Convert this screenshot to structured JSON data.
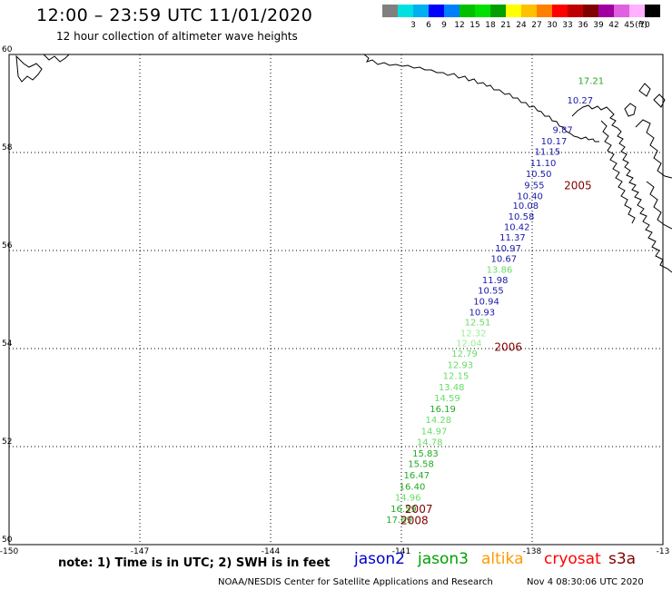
{
  "header": {
    "title": "12:00 – 23:59 UTC 11/01/2020",
    "subtitle": "12 hour collection of altimeter wave heights"
  },
  "legend": {
    "unit": "(ft)",
    "items": [
      {
        "color": "#808080",
        "label": ""
      },
      {
        "color": "#00e0e0",
        "label": "3"
      },
      {
        "color": "#00b0f0",
        "label": "6"
      },
      {
        "color": "#0000ff",
        "label": "9"
      },
      {
        "color": "#0080ff",
        "label": "12"
      },
      {
        "color": "#00c000",
        "label": "15"
      },
      {
        "color": "#00e000",
        "label": "18"
      },
      {
        "color": "#00a000",
        "label": "21"
      },
      {
        "color": "#ffff00",
        "label": "24"
      },
      {
        "color": "#ffc000",
        "label": "27"
      },
      {
        "color": "#ff8000",
        "label": "30"
      },
      {
        "color": "#ff0000",
        "label": "33"
      },
      {
        "color": "#c00000",
        "label": "36"
      },
      {
        "color": "#800000",
        "label": "39"
      },
      {
        "color": "#a000a0",
        "label": "42"
      },
      {
        "color": "#e060e0",
        "label": "45"
      },
      {
        "color": "#ffb0ff",
        "label": "70"
      },
      {
        "color": "#000000",
        "label": ""
      }
    ]
  },
  "map": {
    "lon_range": [
      -150,
      -135
    ],
    "lat_range": [
      50,
      60
    ],
    "lon_ticks": [
      {
        "value": -150,
        "label": "-150"
      },
      {
        "value": -147,
        "label": "-147"
      },
      {
        "value": -144,
        "label": "-144"
      },
      {
        "value": -141,
        "label": "-141"
      },
      {
        "value": -138,
        "label": "-138"
      },
      {
        "value": -135,
        "label": "-13"
      }
    ],
    "lat_ticks": [
      {
        "value": 50,
        "label": "50"
      },
      {
        "value": 52,
        "label": "52"
      },
      {
        "value": 54,
        "label": "54"
      },
      {
        "value": 56,
        "label": "56"
      },
      {
        "value": 58,
        "label": "58"
      },
      {
        "value": 60,
        "label": "60"
      }
    ],
    "observations": [
      {
        "lon": -136.65,
        "lat": 59.4,
        "value": "17.21",
        "color": "#22aa22"
      },
      {
        "lon": -136.9,
        "lat": 59.0,
        "value": "10.27",
        "color": "#1a1aaa"
      },
      {
        "lon": -137.3,
        "lat": 58.4,
        "value": "9.87",
        "color": "#1a1aaa"
      },
      {
        "lon": -137.5,
        "lat": 58.17,
        "value": "10.17",
        "color": "#1a1aaa"
      },
      {
        "lon": -137.65,
        "lat": 57.95,
        "value": "11.15",
        "color": "#1a1aaa"
      },
      {
        "lon": -137.75,
        "lat": 57.72,
        "value": "11.10",
        "color": "#1a1aaa"
      },
      {
        "lon": -137.85,
        "lat": 57.5,
        "value": "10.50",
        "color": "#1a1aaa"
      },
      {
        "lon": -137.95,
        "lat": 57.27,
        "value": "9.55",
        "color": "#1a1aaa"
      },
      {
        "lon": -138.05,
        "lat": 57.05,
        "value": "10.40",
        "color": "#1a1aaa"
      },
      {
        "lon": -138.15,
        "lat": 56.85,
        "value": "10.08",
        "color": "#1a1aaa"
      },
      {
        "lon": -138.25,
        "lat": 56.63,
        "value": "10.58",
        "color": "#1a1aaa"
      },
      {
        "lon": -138.35,
        "lat": 56.42,
        "value": "10.42",
        "color": "#1a1aaa"
      },
      {
        "lon": -138.45,
        "lat": 56.2,
        "value": "11.37",
        "color": "#1a1aaa"
      },
      {
        "lon": -138.55,
        "lat": 55.98,
        "value": "10.97",
        "color": "#1a1aaa"
      },
      {
        "lon": -138.65,
        "lat": 55.77,
        "value": "10.67",
        "color": "#1a1aaa"
      },
      {
        "lon": -138.75,
        "lat": 55.55,
        "value": "13.86",
        "color": "#66dd66"
      },
      {
        "lon": -138.85,
        "lat": 55.33,
        "value": "11.98",
        "color": "#1a1aaa"
      },
      {
        "lon": -138.95,
        "lat": 55.12,
        "value": "10.55",
        "color": "#1a1aaa"
      },
      {
        "lon": -139.05,
        "lat": 54.9,
        "value": "10.94",
        "color": "#1a1aaa"
      },
      {
        "lon": -139.15,
        "lat": 54.68,
        "value": "10.93",
        "color": "#1a1aaa"
      },
      {
        "lon": -139.25,
        "lat": 54.47,
        "value": "12.51",
        "color": "#66dd66"
      },
      {
        "lon": -139.35,
        "lat": 54.25,
        "value": "12.32",
        "color": "#99ee99"
      },
      {
        "lon": -139.45,
        "lat": 54.05,
        "value": "12.04",
        "color": "#99ee99"
      },
      {
        "lon": -139.55,
        "lat": 53.83,
        "value": "12.79",
        "color": "#66dd66"
      },
      {
        "lon": -139.65,
        "lat": 53.6,
        "value": "12.93",
        "color": "#66dd66"
      },
      {
        "lon": -139.75,
        "lat": 53.38,
        "value": "12.15",
        "color": "#66dd66"
      },
      {
        "lon": -139.85,
        "lat": 53.15,
        "value": "13.48",
        "color": "#66dd66"
      },
      {
        "lon": -139.95,
        "lat": 52.93,
        "value": "14.59",
        "color": "#66dd66"
      },
      {
        "lon": -140.05,
        "lat": 52.7,
        "value": "16.19",
        "color": "#22aa22"
      },
      {
        "lon": -140.15,
        "lat": 52.48,
        "value": "14.28",
        "color": "#66dd66"
      },
      {
        "lon": -140.25,
        "lat": 52.25,
        "value": "14.97",
        "color": "#66dd66"
      },
      {
        "lon": -140.35,
        "lat": 52.03,
        "value": "14.78",
        "color": "#66dd66"
      },
      {
        "lon": -140.45,
        "lat": 51.8,
        "value": "15.83",
        "color": "#22aa22"
      },
      {
        "lon": -140.55,
        "lat": 51.58,
        "value": "15.58",
        "color": "#22aa22"
      },
      {
        "lon": -140.65,
        "lat": 51.35,
        "value": "16.47",
        "color": "#22aa22"
      },
      {
        "lon": -140.75,
        "lat": 51.12,
        "value": "16.40",
        "color": "#22aa22"
      },
      {
        "lon": -140.85,
        "lat": 50.9,
        "value": "14.96",
        "color": "#66dd66"
      },
      {
        "lon": -140.95,
        "lat": 50.67,
        "value": "16.59",
        "color": "#22aa22"
      },
      {
        "lon": -141.05,
        "lat": 50.44,
        "value": "17.69",
        "color": "#22aa22"
      }
    ],
    "time_labels": [
      {
        "lon": -136.95,
        "lat": 57.25,
        "value": "2005",
        "color": "#800000"
      },
      {
        "lon": -138.55,
        "lat": 53.95,
        "value": "2006",
        "color": "#800000"
      },
      {
        "lon": -140.6,
        "lat": 50.65,
        "value": "2007",
        "color": "#800000"
      },
      {
        "lon": -140.7,
        "lat": 50.42,
        "value": "2008",
        "color": "#800000"
      }
    ]
  },
  "footer": {
    "note": "note:  1) Time is in UTC;  2) SWH is in feet",
    "satellites": [
      {
        "name": "jason2",
        "color": "#0000cc"
      },
      {
        "name": "jason3",
        "color": "#00a000"
      },
      {
        "name": "altika",
        "color": "#ff9900"
      },
      {
        "name": "cryosat",
        "color": "#ff0000"
      },
      {
        "name": "s3a",
        "color": "#800000"
      }
    ],
    "credit": "NOAA/NESDIS Center for Satellite Applications and Research",
    "timestamp": "Nov  4 08:30:06 UTC 2020"
  }
}
